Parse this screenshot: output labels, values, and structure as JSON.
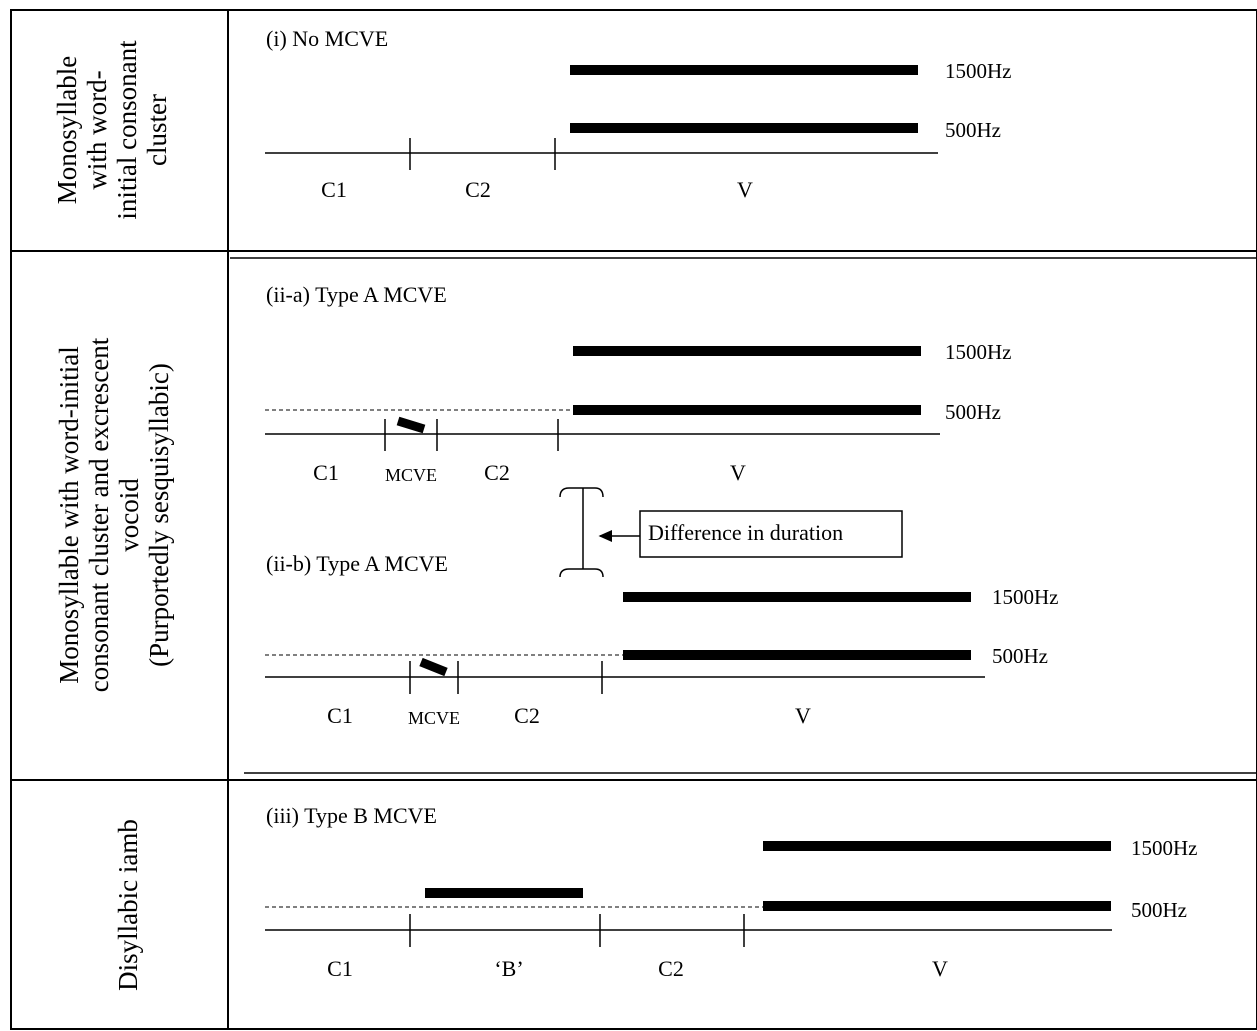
{
  "colors": {
    "ink": "#000000",
    "background": "#ffffff"
  },
  "rows": [
    {
      "side_lines": [
        "Monosyllable",
        "with word-",
        "initial consonant",
        "cluster"
      ],
      "panels": [
        {
          "label": "(i) No MCVE",
          "segments": [
            "C1",
            "C2",
            "V"
          ],
          "formants": [
            "1500Hz",
            "500Hz"
          ]
        }
      ]
    },
    {
      "side_lines": [
        "Monosyllable with word-initial",
        "consonant cluster and excrescent",
        "vocoid",
        "(Purportedly sesquisyllabic)"
      ],
      "panels": [
        {
          "label": "(ii-a) Type A MCVE",
          "segments": [
            "C1",
            "MCVE",
            "C2",
            "V"
          ],
          "formants": [
            "1500Hz",
            "500Hz"
          ]
        },
        {
          "label": "(ii-b) Type A MCVE",
          "segments": [
            "C1",
            "MCVE",
            "C2",
            "V"
          ],
          "formants": [
            "1500Hz",
            "500Hz"
          ]
        }
      ],
      "annotation": "Difference in duration"
    },
    {
      "side_lines": [
        "Disyllabic iamb"
      ],
      "panels": [
        {
          "label": "(iii) Type B MCVE",
          "segments": [
            "C1",
            "‘B’",
            "C2",
            "V"
          ],
          "formants": [
            "1500Hz",
            "500Hz"
          ]
        }
      ]
    }
  ]
}
